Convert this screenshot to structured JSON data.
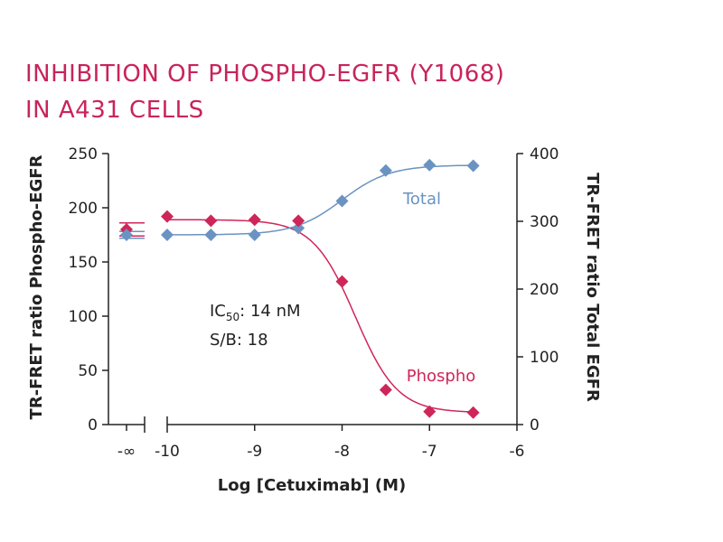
{
  "title": {
    "line1": "INHIBITION OF PHOSPHO-EGFR (Y1068)",
    "line2": "IN A431 CELLS"
  },
  "colors": {
    "title": "#c8245a",
    "phospho": "#cf2659",
    "total": "#6a93c2",
    "axis": "#222222",
    "text": "#222222"
  },
  "annotations": {
    "ic50_prefix": "IC",
    "ic50_sub": "50",
    "ic50_value": ": 14 nM",
    "sb": "S/B: 18"
  },
  "chart_data": {
    "type": "scatter",
    "xlabel": "Log [Cetuximab] (M)",
    "ylabel_left": "TR-FRET ratio Phospho-EGFR",
    "ylabel_right": "TR-FRET ratio Total EGFR",
    "x_ticks": [
      "-∞",
      "-10",
      "-9",
      "-8",
      "-7",
      "-6"
    ],
    "y_left_ticks": [
      "0",
      "50",
      "100",
      "150",
      "200",
      "250"
    ],
    "y_right_ticks": [
      "0",
      "100",
      "200",
      "300",
      "400"
    ],
    "x_range": [
      -10,
      -6
    ],
    "y_left_range": [
      0,
      250
    ],
    "y_right_range": [
      0,
      400
    ],
    "axis_break": true,
    "grid": false,
    "series": [
      {
        "name": "Phospho",
        "axis": "left",
        "neg_inf_value": 180,
        "neg_inf_error": 6,
        "x": [
          -10,
          -9.5,
          -9,
          -8.5,
          -8,
          -7.5,
          -7,
          -6.5
        ],
        "y": [
          192,
          188,
          189,
          188,
          132,
          32,
          12,
          11
        ]
      },
      {
        "name": "Total",
        "axis": "right",
        "neg_inf_value": 280,
        "neg_inf_error": 5,
        "x": [
          -10,
          -9.5,
          -9,
          -8.5,
          -8,
          -7.5,
          -7,
          -6.5
        ],
        "y": [
          280,
          280,
          280,
          290,
          330,
          375,
          383,
          382
        ]
      }
    ]
  }
}
